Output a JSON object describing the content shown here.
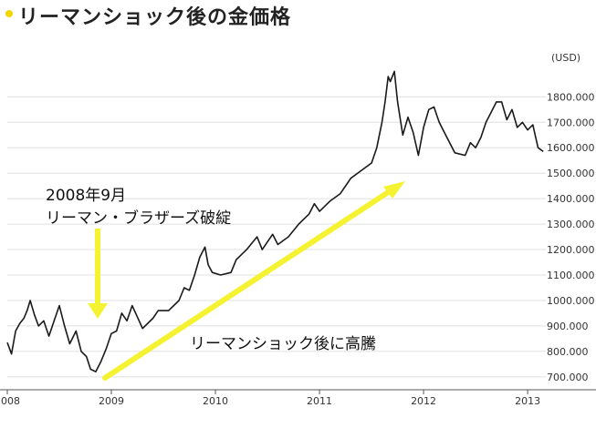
{
  "chart_data": {
    "type": "line",
    "title": "リーマンショック後の金価格",
    "unit_label": "(USD)",
    "x_ticks": [
      "2008",
      "2009",
      "2010",
      "2011",
      "2012",
      "2013"
    ],
    "y_ticks": [
      "700.000",
      "800.000",
      "900.000",
      "1000.000",
      "1100.000",
      "1200.000",
      "1300.000",
      "1400.000",
      "1500.000",
      "1600.000",
      "1700.000",
      "1800.000"
    ],
    "ylim": [
      660,
      1930
    ],
    "xlim": [
      2008.0,
      2013.35
    ],
    "grid": "horizontal",
    "annotations": [
      {
        "text_lines": [
          "2008年9月",
          "リーマン・ブラザーズ破綻"
        ],
        "x": 2008.71,
        "y": 880
      },
      {
        "text": "リーマンショック後に高騰"
      }
    ],
    "colors": {
      "line": "#1a1a1a",
      "arrow": "#f5f232",
      "bullet": "#f2d600",
      "grid": "#e0e0e0"
    },
    "series": [
      {
        "x": [
          2008.0,
          2008.04,
          2008.08,
          2008.12,
          2008.16,
          2008.19,
          2008.22,
          2008.26,
          2008.3,
          2008.35,
          2008.4,
          2008.45,
          2008.5,
          2008.55,
          2008.6,
          2008.66,
          2008.71,
          2008.76,
          2008.8,
          2008.85,
          2008.9,
          2008.95,
          2009.0,
          2009.05,
          2009.1,
          2009.15,
          2009.2,
          2009.3,
          2009.4,
          2009.45,
          2009.55,
          2009.65,
          2009.7,
          2009.75,
          2009.8,
          2009.85,
          2009.9,
          2009.93,
          2009.97,
          2010.05,
          2010.15,
          2010.2,
          2010.3,
          2010.4,
          2010.45,
          2010.55,
          2010.6,
          2010.7,
          2010.8,
          2010.9,
          2010.95,
          2011.0,
          2011.1,
          2011.2,
          2011.3,
          2011.4,
          2011.5,
          2011.55,
          2011.6,
          2011.63,
          2011.66,
          2011.68,
          2011.72,
          2011.75,
          2011.8,
          2011.85,
          2011.9,
          2011.95,
          2012.0,
          2012.05,
          2012.1,
          2012.15,
          2012.2,
          2012.3,
          2012.4,
          2012.45,
          2012.5,
          2012.55,
          2012.6,
          2012.65,
          2012.7,
          2012.75,
          2012.8,
          2012.85,
          2012.9,
          2012.95,
          2013.0,
          2013.05,
          2013.1,
          2013.15
        ],
        "values": [
          835,
          790,
          880,
          910,
          930,
          960,
          1000,
          945,
          900,
          920,
          860,
          920,
          980,
          900,
          830,
          880,
          800,
          780,
          730,
          720,
          760,
          810,
          870,
          880,
          950,
          920,
          980,
          890,
          930,
          960,
          960,
          1000,
          1050,
          1040,
          1100,
          1170,
          1210,
          1140,
          1110,
          1100,
          1110,
          1160,
          1200,
          1250,
          1200,
          1260,
          1220,
          1250,
          1300,
          1340,
          1380,
          1350,
          1390,
          1420,
          1480,
          1510,
          1540,
          1600,
          1700,
          1780,
          1880,
          1860,
          1900,
          1780,
          1650,
          1720,
          1660,
          1570,
          1680,
          1750,
          1760,
          1700,
          1660,
          1580,
          1570,
          1620,
          1600,
          1640,
          1700,
          1740,
          1780,
          1780,
          1710,
          1750,
          1680,
          1700,
          1670,
          1690,
          1600,
          1585
        ]
      }
    ]
  }
}
